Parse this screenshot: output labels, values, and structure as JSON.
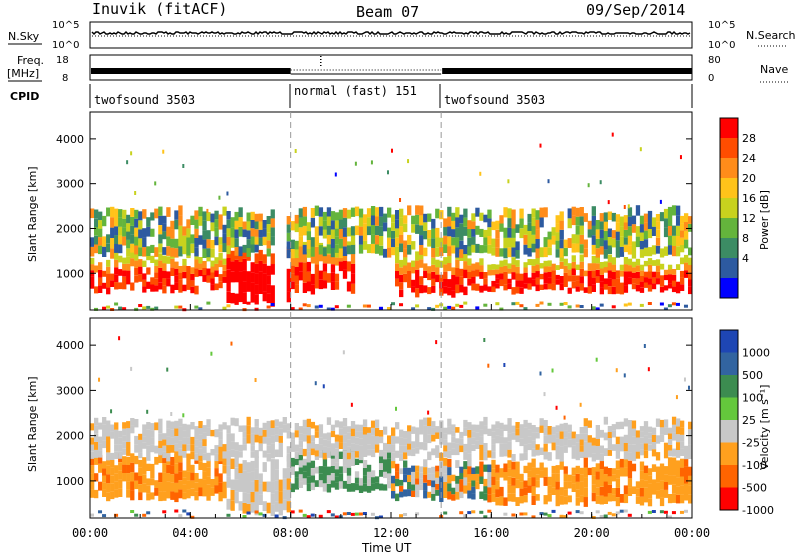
{
  "header": {
    "station": "Inuvik (fitACF)",
    "beam": "Beam 07",
    "date": "09/Sep/2014"
  },
  "top_panels": {
    "nsky_label": "N.Sky",
    "nsky_ticks": [
      "10^5",
      "10^0"
    ],
    "nsearch_label": "N.Search",
    "nsearch_ticks": [
      "10^5",
      "10^0"
    ],
    "freq_label": "Freq.",
    "freq_unit": "[MHz]",
    "freq_ticks": [
      "18",
      "8"
    ],
    "nave_label": "Nave",
    "nave_ticks": [
      "80",
      "0"
    ],
    "cpid_label": "CPID",
    "cpid_segments": [
      {
        "label": "twofsound 3503",
        "start": 0,
        "end": 8
      },
      {
        "label": "normal (fast) 151",
        "start": 8,
        "end": 14
      },
      {
        "label": "twofsound 3503",
        "start": 14,
        "end": 24
      }
    ]
  },
  "chart_data": [
    {
      "type": "heatmap",
      "name": "power",
      "ylabel": "Slant Range [km]",
      "xlabel": "Time UT",
      "xlim": [
        0,
        24
      ],
      "ylim": [
        180,
        4600
      ],
      "yticks": [
        "1000",
        "2000",
        "3000",
        "4000"
      ],
      "xticks": [
        "00:00",
        "04:00",
        "08:00",
        "12:00",
        "16:00",
        "20:00",
        "00:00"
      ],
      "colorbar": {
        "label": "Power [dB]",
        "ticks": [
          "28",
          "24",
          "20",
          "16",
          "12",
          "8",
          "4"
        ],
        "colors": [
          "#ff0000",
          "#ff4d00",
          "#ff8c1a",
          "#ffc31a",
          "#c8d21e",
          "#64b43c",
          "#3c8c64",
          "#2d5aa0",
          "#0000ff"
        ]
      },
      "bands": [
        {
          "t0": 0.0,
          "t1": 5.5,
          "r0": 600,
          "r1": 1400,
          "level": "high"
        },
        {
          "t0": 5.5,
          "t1": 8.0,
          "r0": 300,
          "r1": 1500,
          "level": "max"
        },
        {
          "t0": 8.0,
          "t1": 10.5,
          "r0": 600,
          "r1": 1600,
          "level": "high"
        },
        {
          "t0": 12.2,
          "t1": 15.0,
          "r0": 500,
          "r1": 1400,
          "level": "high"
        },
        {
          "t0": 15.0,
          "t1": 24.0,
          "r0": 600,
          "r1": 1300,
          "level": "high"
        },
        {
          "t0": 0.0,
          "t1": 24.0,
          "r0": 1400,
          "r1": 2400,
          "level": "mid"
        }
      ]
    },
    {
      "type": "heatmap",
      "name": "velocity",
      "ylabel": "Slant Range [km]",
      "xlabel": "Time UT",
      "xlim": [
        0,
        24
      ],
      "ylim": [
        180,
        4600
      ],
      "yticks": [
        "1000",
        "2000",
        "3000",
        "4000"
      ],
      "xticks": [
        "00:00",
        "04:00",
        "08:00",
        "12:00",
        "16:00",
        "20:00",
        "00:00"
      ],
      "colorbar": {
        "label": "Velocity [m s⁻¹]",
        "ticks": [
          "1000",
          "500",
          "100",
          "25",
          "-25",
          "-100",
          "-500",
          "-1000"
        ],
        "colors": [
          "#1e46b4",
          "#3264a0",
          "#3c8c50",
          "#64c83c",
          "#c8c8c8",
          "#ffa01e",
          "#ff6400",
          "#ff0000"
        ]
      },
      "bands": [
        {
          "t0": 0.0,
          "t1": 5.5,
          "r0": 600,
          "r1": 1500,
          "level": "orange"
        },
        {
          "t0": 5.5,
          "t1": 8.0,
          "r0": 300,
          "r1": 1500,
          "level": "grey"
        },
        {
          "t0": 8.0,
          "t1": 12.0,
          "r0": 800,
          "r1": 1600,
          "level": "green"
        },
        {
          "t0": 12.0,
          "t1": 16.0,
          "r0": 600,
          "r1": 1400,
          "level": "mixed"
        },
        {
          "t0": 16.0,
          "t1": 24.0,
          "r0": 500,
          "r1": 1400,
          "level": "orange"
        },
        {
          "t0": 0.0,
          "t1": 24.0,
          "r0": 1500,
          "r1": 2300,
          "level": "grey"
        }
      ]
    }
  ]
}
